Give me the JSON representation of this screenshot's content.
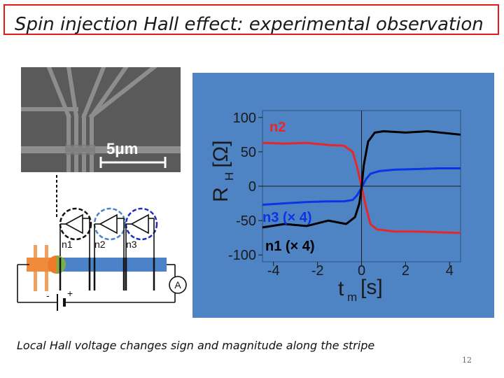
{
  "slide": {
    "title": "Spin injection Hall effect: experimental observation",
    "caption": "Local Hall voltage changes sign and magnitude along the stripe",
    "page_number": "12"
  },
  "sem_image": {
    "scale_bar_label": "5μm"
  },
  "device_schematic": {
    "probe_labels": [
      "n1",
      "n2",
      "n3"
    ],
    "ammeter_label": "A",
    "battery_minus": "-",
    "battery_plus": "+"
  },
  "colors": {
    "title_border": "#e01b1b",
    "plot_background": "#4e84c4",
    "n1": "#000000",
    "n2": "#e8262a",
    "n3": "#0a35e6"
  },
  "chart_data": {
    "type": "line",
    "xlabel": "t",
    "xlabel_subscript": "m",
    "xlabel_unit": "[s]",
    "ylabel": "R",
    "ylabel_subscript": "H",
    "ylabel_unit": "[Ω]",
    "xlim": [
      -4.5,
      4.5
    ],
    "ylim": [
      -110,
      110
    ],
    "x_ticks": [
      -4,
      -2,
      0,
      2,
      4
    ],
    "x_tick_labels": [
      "-4",
      "-2",
      "0",
      "2",
      "4"
    ],
    "y_ticks": [
      100,
      50,
      0,
      -50,
      -100
    ],
    "y_tick_labels": [
      "100",
      "50",
      "0",
      "-50",
      "-100"
    ],
    "annotations": [
      {
        "series": "n2",
        "text": "n2"
      },
      {
        "series": "n3",
        "text": "n3 (× 4)"
      },
      {
        "series": "n1",
        "text": "n1 (× 4)"
      }
    ],
    "series": [
      {
        "name": "n2",
        "color": "#e8262a",
        "x": [
          -4.5,
          -3.5,
          -2.5,
          -1.5,
          -0.8,
          -0.4,
          -0.2,
          0.0,
          0.2,
          0.4,
          0.7,
          1.0,
          1.5,
          2.5,
          3.5,
          4.5
        ],
        "y": [
          63,
          62,
          63,
          60,
          59,
          50,
          28,
          0,
          -30,
          -55,
          -63,
          -64,
          -66,
          -66,
          -67,
          -68
        ]
      },
      {
        "name": "n3",
        "color": "#0a35e6",
        "x": [
          -4.5,
          -3.5,
          -2.5,
          -1.5,
          -0.8,
          -0.4,
          -0.2,
          0.0,
          0.2,
          0.4,
          0.8,
          1.5,
          2.5,
          3.5,
          4.5
        ],
        "y": [
          -27,
          -25,
          -23,
          -22,
          -22,
          -20,
          -13,
          -2,
          10,
          18,
          22,
          24,
          25,
          26,
          26
        ]
      },
      {
        "name": "n1",
        "color": "#000000",
        "x": [
          -4.5,
          -3.5,
          -2.5,
          -1.5,
          -0.7,
          -0.3,
          -0.1,
          0.0,
          0.1,
          0.3,
          0.6,
          1.0,
          2.0,
          3.0,
          4.5
        ],
        "y": [
          -60,
          -55,
          -58,
          -50,
          -55,
          -45,
          -25,
          -2,
          30,
          65,
          78,
          80,
          78,
          80,
          75
        ]
      }
    ]
  }
}
